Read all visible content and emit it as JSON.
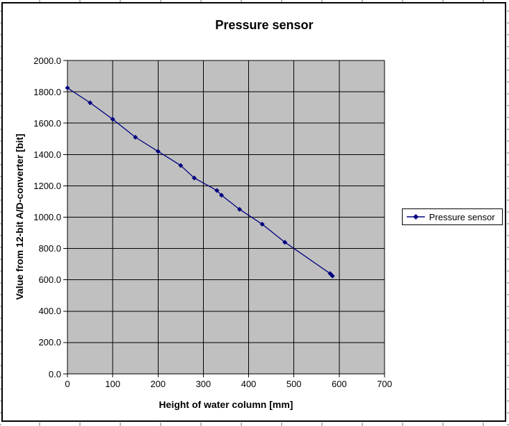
{
  "chart_data": {
    "type": "line",
    "title": "Pressure sensor",
    "xlabel": "Height of water column [mm]",
    "ylabel": "Value from 12-bit A/D-converter [bit]",
    "series_name": "Pressure sensor",
    "x": [
      0,
      50,
      100,
      150,
      200,
      250,
      280,
      330,
      340,
      380,
      430,
      480,
      580,
      585
    ],
    "y": [
      1825,
      1730,
      1625,
      1510,
      1420,
      1330,
      1250,
      1170,
      1140,
      1050,
      955,
      840,
      640,
      625
    ],
    "xlim": [
      0,
      700
    ],
    "ylim": [
      0,
      2000
    ],
    "xtick_step": 100,
    "ytick_step": 200,
    "ytick_decimals": 1,
    "grid": true,
    "legend_position": "right",
    "marker": "diamond",
    "colors": {
      "series": "#000080",
      "plot_bg": "#c0c0c0",
      "grid": "#000000",
      "chart_bg": "#ffffff",
      "border": "#000000"
    }
  }
}
